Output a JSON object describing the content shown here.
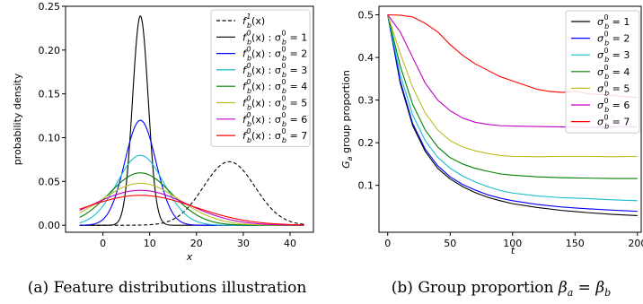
{
  "chart_data": [
    {
      "type": "line",
      "panel": "a",
      "caption": "(a) Feature distributions illustration",
      "xlabel": "x",
      "ylabel": "probability density",
      "xlim": [
        -8,
        45
      ],
      "ylim": [
        -0.008,
        0.25
      ],
      "xticks": [
        "0",
        "10",
        "20",
        "30",
        "40"
      ],
      "yticks": [
        "0.00",
        "0.05",
        "0.10",
        "0.15",
        "0.20",
        "0.25"
      ],
      "legend_position": "top-right",
      "x_support": [
        -5,
        43
      ],
      "series": [
        {
          "name": "f_b^1(x)",
          "mean": 27,
          "sd": 5.5,
          "color": "#000000",
          "dashed": true
        },
        {
          "name": "f_b^0(x) : σ_b^0 = 1",
          "mean": 8,
          "sd": 1.67,
          "color": "#000000"
        },
        {
          "name": "f_b^0(x) : σ_b^0 = 2",
          "mean": 8,
          "sd": 3.33,
          "color": "#0000ff"
        },
        {
          "name": "f_b^0(x) : σ_b^0 = 3",
          "mean": 8,
          "sd": 5.0,
          "color": "#17becf"
        },
        {
          "name": "f_b^0(x) : σ_b^0 = 4",
          "mean": 8,
          "sd": 6.67,
          "color": "#008000"
        },
        {
          "name": "f_b^0(x) : σ_b^0 = 5",
          "mean": 8,
          "sd": 8.33,
          "color": "#bcbd22"
        },
        {
          "name": "f_b^0(x) : σ_b^0 = 6",
          "mean": 8,
          "sd": 10.0,
          "color": "#c000c0"
        },
        {
          "name": "f_b^0(x) : σ_b^0 = 7",
          "mean": 8,
          "sd": 11.67,
          "color": "#ff0000"
        }
      ],
      "legend": [
        {
          "pre": "f",
          "sub": "b",
          "sup": "1",
          "post": "(x)"
        },
        {
          "pre": "f",
          "sub": "b",
          "sup": "0",
          "post": "(x) : σ",
          "sub2": "b",
          "sup2": "0",
          "tail": " = 1"
        },
        {
          "pre": "f",
          "sub": "b",
          "sup": "0",
          "post": "(x) : σ",
          "sub2": "b",
          "sup2": "0",
          "tail": " = 2"
        },
        {
          "pre": "f",
          "sub": "b",
          "sup": "0",
          "post": "(x) : σ",
          "sub2": "b",
          "sup2": "0",
          "tail": " = 3"
        },
        {
          "pre": "f",
          "sub": "b",
          "sup": "0",
          "post": "(x) : σ",
          "sub2": "b",
          "sup2": "0",
          "tail": " = 4"
        },
        {
          "pre": "f",
          "sub": "b",
          "sup": "0",
          "post": "(x) : σ",
          "sub2": "b",
          "sup2": "0",
          "tail": " = 5"
        },
        {
          "pre": "f",
          "sub": "b",
          "sup": "0",
          "post": "(x) : σ",
          "sub2": "b",
          "sup2": "0",
          "tail": " = 6"
        },
        {
          "pre": "f",
          "sub": "b",
          "sup": "0",
          "post": "(x) : σ",
          "sub2": "b",
          "sup2": "0",
          "tail": " = 7"
        }
      ]
    },
    {
      "type": "line",
      "panel": "b",
      "caption_text": "(b) Group proportion ",
      "caption_math": {
        "a": "β",
        "a_sub": "a",
        "eq": " = ",
        "b": "β",
        "b_sub": "b"
      },
      "xlabel": "t",
      "ylabel_main": "G",
      "ylabel_sub": "a",
      "ylabel_rest": " group proportion",
      "xlim": [
        -7,
        203
      ],
      "ylim": [
        -0.01,
        0.52
      ],
      "xticks": [
        "0",
        "50",
        "100",
        "150",
        "200"
      ],
      "yticks": [
        "0.1",
        "0.2",
        "0.3",
        "0.4",
        "0.5"
      ],
      "legend_position": "top-right",
      "series": [
        {
          "name": "σ_b^0 = 1",
          "color": "#000000",
          "points": [
            [
              0,
              0.5
            ],
            [
              10,
              0.34
            ],
            [
              20,
              0.24
            ],
            [
              30,
              0.18
            ],
            [
              40,
              0.14
            ],
            [
              50,
              0.115
            ],
            [
              60,
              0.097
            ],
            [
              70,
              0.083
            ],
            [
              80,
              0.072
            ],
            [
              90,
              0.064
            ],
            [
              100,
              0.057
            ],
            [
              120,
              0.048
            ],
            [
              140,
              0.041
            ],
            [
              160,
              0.036
            ],
            [
              180,
              0.032
            ],
            [
              200,
              0.029
            ]
          ]
        },
        {
          "name": "σ_b^0 = 2",
          "color": "#0000ff",
          "points": [
            [
              0,
              0.5
            ],
            [
              10,
              0.345
            ],
            [
              20,
              0.245
            ],
            [
              30,
              0.185
            ],
            [
              40,
              0.146
            ],
            [
              50,
              0.12
            ],
            [
              60,
              0.102
            ],
            [
              70,
              0.089
            ],
            [
              80,
              0.078
            ],
            [
              90,
              0.07
            ],
            [
              100,
              0.064
            ],
            [
              120,
              0.055
            ],
            [
              140,
              0.049
            ],
            [
              160,
              0.045
            ],
            [
              180,
              0.042
            ],
            [
              200,
              0.039
            ]
          ]
        },
        {
          "name": "σ_b^0 = 3",
          "color": "#17becf",
          "points": [
            [
              0,
              0.5
            ],
            [
              10,
              0.36
            ],
            [
              20,
              0.265
            ],
            [
              30,
              0.205
            ],
            [
              40,
              0.166
            ],
            [
              50,
              0.14
            ],
            [
              60,
              0.122
            ],
            [
              70,
              0.108
            ],
            [
              80,
              0.097
            ],
            [
              90,
              0.088
            ],
            [
              100,
              0.082
            ],
            [
              120,
              0.075
            ],
            [
              140,
              0.071
            ],
            [
              160,
              0.069
            ],
            [
              180,
              0.066
            ],
            [
              200,
              0.064
            ]
          ]
        },
        {
          "name": "σ_b^0 = 4",
          "color": "#008000",
          "points": [
            [
              0,
              0.5
            ],
            [
              10,
              0.38
            ],
            [
              20,
              0.29
            ],
            [
              30,
              0.23
            ],
            [
              40,
              0.19
            ],
            [
              50,
              0.165
            ],
            [
              60,
              0.15
            ],
            [
              70,
              0.14
            ],
            [
              80,
              0.133
            ],
            [
              90,
              0.127
            ],
            [
              100,
              0.124
            ],
            [
              120,
              0.12
            ],
            [
              140,
              0.118
            ],
            [
              160,
              0.117
            ],
            [
              180,
              0.116
            ],
            [
              200,
              0.116
            ]
          ]
        },
        {
          "name": "σ_b^0 = 5",
          "color": "#bcbd22",
          "points": [
            [
              0,
              0.5
            ],
            [
              10,
              0.41
            ],
            [
              20,
              0.33
            ],
            [
              30,
              0.27
            ],
            [
              40,
              0.23
            ],
            [
              50,
              0.205
            ],
            [
              60,
              0.19
            ],
            [
              70,
              0.181
            ],
            [
              80,
              0.175
            ],
            [
              90,
              0.17
            ],
            [
              100,
              0.168
            ],
            [
              120,
              0.167
            ],
            [
              140,
              0.168
            ],
            [
              160,
              0.168
            ],
            [
              180,
              0.167
            ],
            [
              200,
              0.168
            ]
          ]
        },
        {
          "name": "σ_b^0 = 6",
          "color": "#c000c0",
          "points": [
            [
              0,
              0.5
            ],
            [
              10,
              0.46
            ],
            [
              20,
              0.4
            ],
            [
              30,
              0.34
            ],
            [
              40,
              0.3
            ],
            [
              50,
              0.275
            ],
            [
              60,
              0.258
            ],
            [
              70,
              0.248
            ],
            [
              80,
              0.243
            ],
            [
              90,
              0.24
            ],
            [
              100,
              0.239
            ],
            [
              120,
              0.238
            ],
            [
              140,
              0.237
            ],
            [
              160,
              0.236
            ],
            [
              180,
              0.238
            ],
            [
              200,
              0.237
            ]
          ]
        },
        {
          "name": "σ_b^0 = 7",
          "color": "#ff0000",
          "points": [
            [
              0,
              0.5
            ],
            [
              10,
              0.499
            ],
            [
              20,
              0.495
            ],
            [
              30,
              0.48
            ],
            [
              40,
              0.46
            ],
            [
              50,
              0.43
            ],
            [
              60,
              0.405
            ],
            [
              70,
              0.385
            ],
            [
              80,
              0.37
            ],
            [
              90,
              0.355
            ],
            [
              100,
              0.345
            ],
            [
              110,
              0.335
            ],
            [
              120,
              0.325
            ],
            [
              130,
              0.32
            ],
            [
              140,
              0.318
            ],
            [
              150,
              0.321
            ],
            [
              160,
              0.315
            ],
            [
              170,
              0.313
            ],
            [
              180,
              0.311
            ],
            [
              190,
              0.308
            ],
            [
              200,
              0.306
            ]
          ]
        }
      ],
      "legend": [
        {
          "pre": "σ",
          "sub": "b",
          "sup": "0",
          "tail": " = 1"
        },
        {
          "pre": "σ",
          "sub": "b",
          "sup": "0",
          "tail": " = 2"
        },
        {
          "pre": "σ",
          "sub": "b",
          "sup": "0",
          "tail": " = 3"
        },
        {
          "pre": "σ",
          "sub": "b",
          "sup": "0",
          "tail": " = 4"
        },
        {
          "pre": "σ",
          "sub": "b",
          "sup": "0",
          "tail": " = 5"
        },
        {
          "pre": "σ",
          "sub": "b",
          "sup": "0",
          "tail": " = 6"
        },
        {
          "pre": "σ",
          "sub": "b",
          "sup": "0",
          "tail": " = 7"
        }
      ]
    }
  ]
}
